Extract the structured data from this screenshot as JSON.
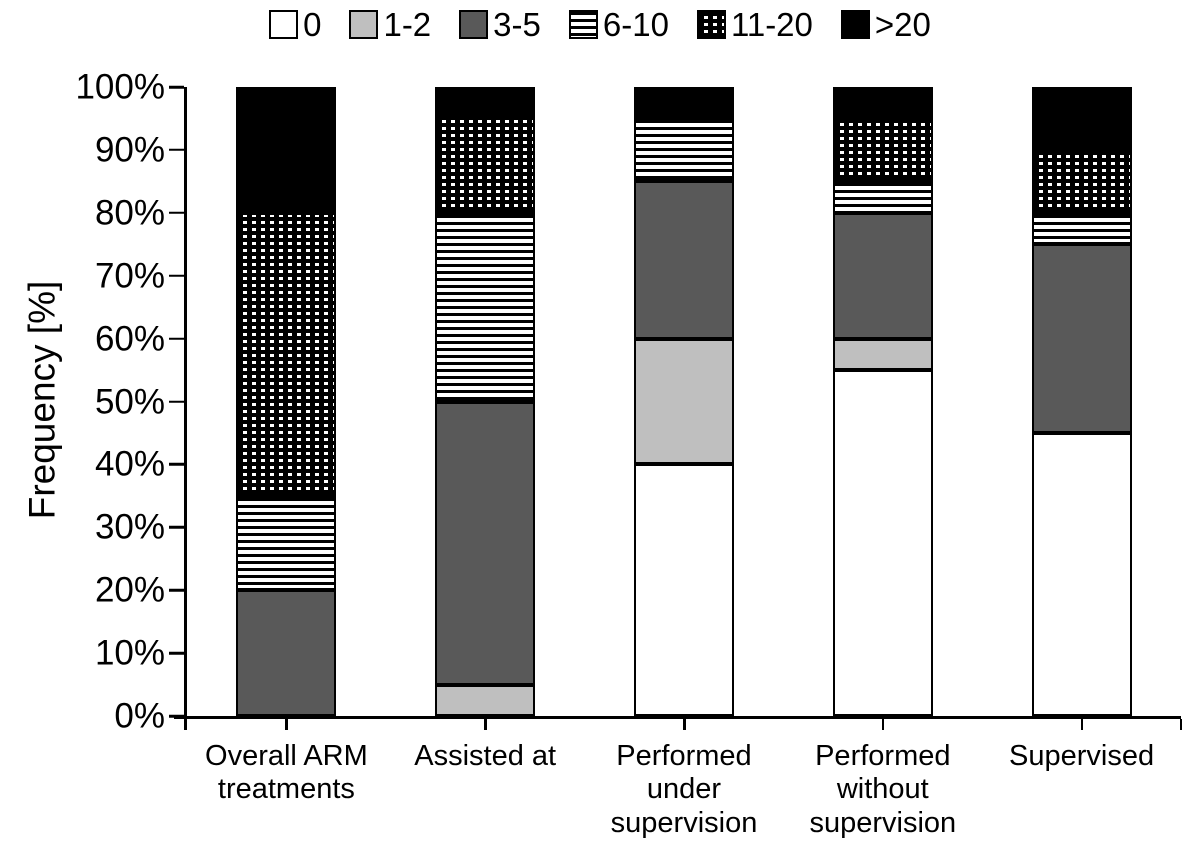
{
  "chart_data": {
    "type": "bar",
    "subtype": "stacked-100-percent",
    "title": "",
    "ylabel": "Frequency [%]",
    "xlabel": "",
    "grid": false,
    "legend_position": "top-center",
    "y_axis": {
      "min": 0,
      "max": 100,
      "step": 10,
      "tick_suffix": "%",
      "tick_labels": [
        "0%",
        "10%",
        "20%",
        "30%",
        "40%",
        "50%",
        "60%",
        "70%",
        "80%",
        "90%",
        "100%"
      ]
    },
    "categories": [
      "Overall ARM\ntreatments",
      "Assisted at",
      "Performed\nunder\nsupervision",
      "Performed\nwithout\nsupervision",
      "Supervised"
    ],
    "series": [
      {
        "name": "0",
        "pattern": "white",
        "values": [
          0,
          0,
          40,
          55,
          45
        ]
      },
      {
        "name": "1-2",
        "pattern": "light-gray",
        "values": [
          0,
          5,
          20,
          5,
          0
        ]
      },
      {
        "name": "3-5",
        "pattern": "dark-gray",
        "values": [
          20,
          45,
          25,
          20,
          30
        ]
      },
      {
        "name": "6-10",
        "pattern": "h-stripes",
        "values": [
          15,
          30,
          10,
          5,
          5
        ]
      },
      {
        "name": "11-20",
        "pattern": "dots",
        "values": [
          45,
          15,
          0,
          10,
          10
        ]
      },
      {
        "name": ">20",
        "pattern": "black",
        "values": [
          20,
          5,
          5,
          5,
          10
        ]
      }
    ],
    "colors": {
      "white": "#ffffff",
      "light_gray": "#bfbfbf",
      "dark_gray": "#595959",
      "black": "#000000",
      "axis": "#000000"
    }
  }
}
